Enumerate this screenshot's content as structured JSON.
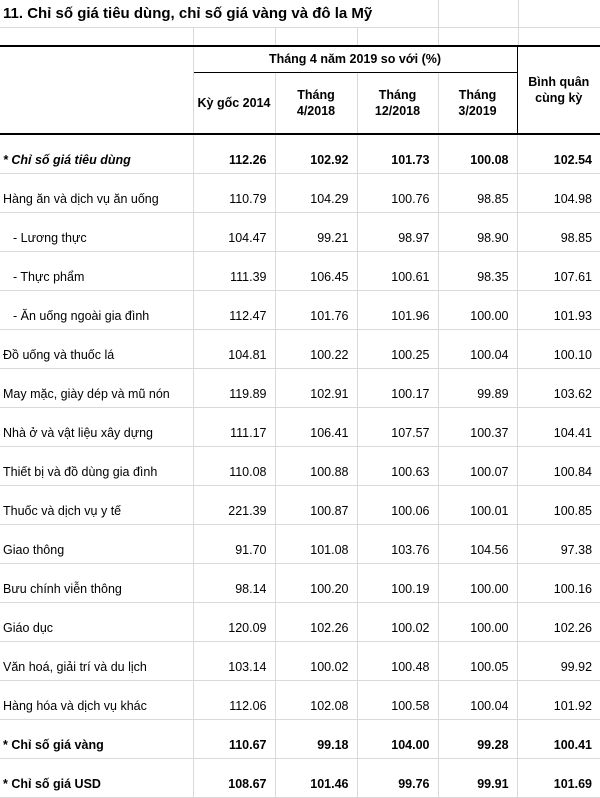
{
  "title": "11. Chỉ số giá tiêu dùng, chỉ số giá vàng và đô la Mỹ",
  "colors": {
    "background": "#ffffff",
    "text": "#000000",
    "border_dark": "#000000",
    "gridline": "#d9d9d9"
  },
  "table": {
    "group_header": "Tháng 4 năm 2019 so với (%)",
    "columns": [
      "Kỳ gốc 2014",
      "Tháng\n4/2018",
      "Tháng\n12/2018",
      "Tháng\n3/2019"
    ],
    "avg_column": "Bình quân\ncùng kỳ",
    "rows": [
      {
        "label": "* Chỉ số giá tiêu dùng",
        "style": "summary-italic",
        "indent": false,
        "values": [
          "112.26",
          "102.92",
          "101.73",
          "100.08",
          "102.54"
        ]
      },
      {
        "label": "Hàng ăn và dịch vụ ăn uống",
        "style": "",
        "indent": false,
        "values": [
          "110.79",
          "104.29",
          "100.76",
          "98.85",
          "104.98"
        ]
      },
      {
        "label": "- Lương thực",
        "style": "",
        "indent": true,
        "values": [
          "104.47",
          "99.21",
          "98.97",
          "98.90",
          "98.85"
        ]
      },
      {
        "label": "- Thực phẩm",
        "style": "",
        "indent": true,
        "values": [
          "111.39",
          "106.45",
          "100.61",
          "98.35",
          "107.61"
        ]
      },
      {
        "label": "- Ăn uống ngoài gia đình",
        "style": "",
        "indent": true,
        "values": [
          "112.47",
          "101.76",
          "101.96",
          "100.00",
          "101.93"
        ]
      },
      {
        "label": "Đồ uống và thuốc lá",
        "style": "",
        "indent": false,
        "values": [
          "104.81",
          "100.22",
          "100.25",
          "100.04",
          "100.10"
        ]
      },
      {
        "label": "May mặc, giày dép và mũ nón",
        "style": "",
        "indent": false,
        "values": [
          "119.89",
          "102.91",
          "100.17",
          "99.89",
          "103.62"
        ]
      },
      {
        "label": "Nhà ở và vật liệu xây dựng",
        "style": "",
        "indent": false,
        "values": [
          "111.17",
          "106.41",
          "107.57",
          "100.37",
          "104.41"
        ]
      },
      {
        "label": "Thiết bị và đồ dùng gia đình",
        "style": "",
        "indent": false,
        "values": [
          "110.08",
          "100.88",
          "100.63",
          "100.07",
          "100.84"
        ]
      },
      {
        "label": "Thuốc và dịch vụ y tế",
        "style": "",
        "indent": false,
        "values": [
          "221.39",
          "100.87",
          "100.06",
          "100.01",
          "100.85"
        ]
      },
      {
        "label": "Giao thông",
        "style": "",
        "indent": false,
        "values": [
          "91.70",
          "101.08",
          "103.76",
          "104.56",
          "97.38"
        ]
      },
      {
        "label": "Bưu chính viễn thông",
        "style": "",
        "indent": false,
        "values": [
          "98.14",
          "100.20",
          "100.19",
          "100.00",
          "100.16"
        ]
      },
      {
        "label": "Giáo dục",
        "style": "",
        "indent": false,
        "values": [
          "120.09",
          "102.26",
          "100.02",
          "100.00",
          "102.26"
        ]
      },
      {
        "label": "Văn hoá, giải trí và du lịch",
        "style": "",
        "indent": false,
        "values": [
          "103.14",
          "100.02",
          "100.48",
          "100.05",
          "99.92"
        ]
      },
      {
        "label": "Hàng hóa và dịch vụ khác",
        "style": "",
        "indent": false,
        "values": [
          "112.06",
          "102.08",
          "100.58",
          "100.04",
          "101.92"
        ]
      },
      {
        "label": "* Chỉ số giá vàng",
        "style": "summary",
        "indent": false,
        "values": [
          "110.67",
          "99.18",
          "104.00",
          "99.28",
          "100.41"
        ]
      },
      {
        "label": "* Chỉ số giá USD",
        "style": "summary",
        "indent": false,
        "values": [
          "108.67",
          "101.46",
          "99.76",
          "99.91",
          "101.69"
        ]
      }
    ]
  }
}
